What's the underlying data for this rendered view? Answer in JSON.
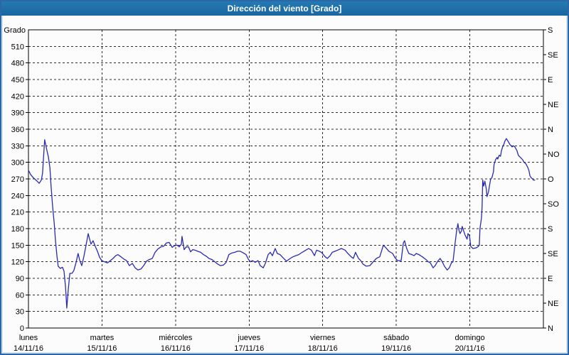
{
  "window": {
    "title": "Dirección del viento [Grado]"
  },
  "chart_data": {
    "type": "line",
    "title": "Dirección del viento [Grado]",
    "y_axis_label": "Grado",
    "x_axis_label": "",
    "ylim": [
      0,
      540
    ],
    "hours_per_day": 24,
    "grid": "dashed",
    "legend": "none",
    "y_left_ticks": [
      0,
      30,
      60,
      90,
      120,
      150,
      180,
      210,
      240,
      270,
      300,
      330,
      360,
      390,
      420,
      450,
      480,
      510
    ],
    "y_right_compass_ticks": [
      {
        "deg": 0,
        "label": "N"
      },
      {
        "deg": 45,
        "label": "NE"
      },
      {
        "deg": 90,
        "label": "E"
      },
      {
        "deg": 135,
        "label": "SE"
      },
      {
        "deg": 180,
        "label": "S"
      },
      {
        "deg": 225,
        "label": "SO"
      },
      {
        "deg": 270,
        "label": "O"
      },
      {
        "deg": 315,
        "label": "NO"
      },
      {
        "deg": 360,
        "label": "N"
      },
      {
        "deg": 405,
        "label": "NE"
      },
      {
        "deg": 450,
        "label": "E"
      },
      {
        "deg": 495,
        "label": "SE"
      },
      {
        "deg": 540,
        "label": "S"
      }
    ],
    "x_days": [
      {
        "name": "lunes",
        "date": "14/11/16"
      },
      {
        "name": "martes",
        "date": "15/11/16"
      },
      {
        "name": "miércoles",
        "date": "16/11/16"
      },
      {
        "name": "jueves",
        "date": "17/11/16"
      },
      {
        "name": "viernes",
        "date": "18/11/16"
      },
      {
        "name": "sábado",
        "date": "19/11/16"
      },
      {
        "name": "domingo",
        "date": "20/11/16"
      }
    ],
    "colors": {
      "line": "#2a2ab4",
      "grid": "#2b2b2b",
      "frame": "#000000",
      "titlebar_bg": "#1d6fa5",
      "titlebar_text": "#ffffff",
      "window_border": "#2a68a8",
      "background": "#fcfcfc"
    },
    "series": [
      {
        "name": "Dirección del viento",
        "unit": "Grado",
        "color": "#2a2ab4",
        "points": [
          [
            0,
            286
          ],
          [
            0.7,
            278
          ],
          [
            1.6,
            272
          ],
          [
            2.8,
            266
          ],
          [
            3.5,
            262
          ],
          [
            4.2,
            268
          ],
          [
            4.6,
            280
          ],
          [
            5,
            315
          ],
          [
            5.3,
            341
          ],
          [
            6,
            322
          ],
          [
            6.5,
            310
          ],
          [
            7,
            290
          ],
          [
            7.4,
            255
          ],
          [
            7.9,
            220
          ],
          [
            8.4,
            190
          ],
          [
            8.8,
            160
          ],
          [
            9.3,
            130
          ],
          [
            9.7,
            112
          ],
          [
            10.4,
            108
          ],
          [
            11.1,
            110
          ],
          [
            11.6,
            103
          ],
          [
            12.1,
            75
          ],
          [
            12.5,
            36
          ],
          [
            13,
            70
          ],
          [
            13.5,
            99
          ],
          [
            14.2,
            99
          ],
          [
            14.8,
            104
          ],
          [
            15.5,
            118
          ],
          [
            16.2,
            135
          ],
          [
            16.7,
            123
          ],
          [
            17.4,
            113
          ],
          [
            18.1,
            130
          ],
          [
            18.8,
            150
          ],
          [
            19.5,
            171
          ],
          [
            20,
            160
          ],
          [
            20.4,
            152
          ],
          [
            21.1,
            158
          ],
          [
            21.8,
            148
          ],
          [
            22.5,
            139
          ],
          [
            23.2,
            128
          ],
          [
            23.9,
            122
          ],
          [
            24.8,
            120
          ],
          [
            25.8,
            118
          ],
          [
            26.7,
            122
          ],
          [
            27.6,
            126
          ],
          [
            28.5,
            131
          ],
          [
            29.2,
            133
          ],
          [
            30.2,
            129
          ],
          [
            31.1,
            125
          ],
          [
            32,
            122
          ],
          [
            32.9,
            113
          ],
          [
            33.9,
            117
          ],
          [
            34.8,
            109
          ],
          [
            35.7,
            105
          ],
          [
            36.7,
            107
          ],
          [
            37.6,
            113
          ],
          [
            38.5,
            121
          ],
          [
            39.4,
            124
          ],
          [
            40.4,
            126
          ],
          [
            41.3,
            137
          ],
          [
            42.2,
            143
          ],
          [
            43.2,
            147
          ],
          [
            44.1,
            148
          ],
          [
            45,
            154
          ],
          [
            45.9,
            155
          ],
          [
            46.9,
            146
          ],
          [
            47.6,
            149
          ],
          [
            48.5,
            150
          ],
          [
            49.2,
            147
          ],
          [
            49.9,
            152
          ],
          [
            50.1,
            166
          ],
          [
            50.8,
            142
          ],
          [
            51.5,
            147
          ],
          [
            52.2,
            147
          ],
          [
            52.9,
            138
          ],
          [
            53.6,
            142
          ],
          [
            54.3,
            141
          ],
          [
            55.2,
            139
          ],
          [
            56.2,
            137
          ],
          [
            57.1,
            133
          ],
          [
            58,
            130
          ],
          [
            58.9,
            126
          ],
          [
            59.9,
            124
          ],
          [
            60.8,
            120
          ],
          [
            61.7,
            116
          ],
          [
            62.6,
            113
          ],
          [
            63.6,
            114
          ],
          [
            64.5,
            119
          ],
          [
            65.4,
            133
          ],
          [
            66.4,
            136
          ],
          [
            67.3,
            137
          ],
          [
            68.2,
            139
          ],
          [
            69.1,
            139
          ],
          [
            70.1,
            136
          ],
          [
            71,
            133
          ],
          [
            71.7,
            125
          ],
          [
            72.4,
            120
          ],
          [
            73.1,
            122
          ],
          [
            74,
            119
          ],
          [
            74.9,
            122
          ],
          [
            75.6,
            113
          ],
          [
            76.6,
            109
          ],
          [
            77.3,
            117
          ],
          [
            78.2,
            133
          ],
          [
            78.9,
            137
          ],
          [
            79.6,
            131
          ],
          [
            80.5,
            144
          ],
          [
            81.2,
            135
          ],
          [
            82.1,
            133
          ],
          [
            83.1,
            127
          ],
          [
            84.2,
            121
          ],
          [
            85.4,
            126
          ],
          [
            86.3,
            129
          ],
          [
            87.2,
            131
          ],
          [
            88.2,
            133
          ],
          [
            89.3,
            137
          ],
          [
            90.5,
            141
          ],
          [
            91.4,
            144
          ],
          [
            92.3,
            141
          ],
          [
            93.3,
            131
          ],
          [
            94,
            141
          ],
          [
            94.9,
            139
          ],
          [
            95.6,
            137
          ],
          [
            96.8,
            129
          ],
          [
            97.5,
            126
          ],
          [
            98.4,
            131
          ],
          [
            99.1,
            137
          ],
          [
            100,
            139
          ],
          [
            100.9,
            141
          ],
          [
            102.1,
            144
          ],
          [
            103.3,
            141
          ],
          [
            104.2,
            135
          ],
          [
            105.3,
            129
          ],
          [
            106,
            126
          ],
          [
            106.7,
            137
          ],
          [
            107.7,
            126
          ],
          [
            108.4,
            122
          ],
          [
            109.1,
            116
          ],
          [
            110.2,
            112
          ],
          [
            111.4,
            113
          ],
          [
            112.5,
            120
          ],
          [
            113.5,
            126
          ],
          [
            114.6,
            129
          ],
          [
            115.8,
            150
          ],
          [
            116.5,
            146
          ],
          [
            117.6,
            139
          ],
          [
            118.8,
            135
          ],
          [
            119.5,
            128
          ],
          [
            120.4,
            122
          ],
          [
            121.6,
            122
          ],
          [
            122.3,
            154
          ],
          [
            122.7,
            158
          ],
          [
            123.4,
            144
          ],
          [
            124.1,
            135
          ],
          [
            125.1,
            133
          ],
          [
            125.8,
            131
          ],
          [
            126.5,
            135
          ],
          [
            127.4,
            133
          ],
          [
            128.5,
            129
          ],
          [
            129.7,
            124
          ],
          [
            130.4,
            120
          ],
          [
            131.1,
            118
          ],
          [
            132,
            109
          ],
          [
            132.7,
            113
          ],
          [
            133.4,
            120
          ],
          [
            134.3,
            126
          ],
          [
            135,
            120
          ],
          [
            135.7,
            112
          ],
          [
            136.6,
            105
          ],
          [
            137.3,
            109
          ],
          [
            138,
            118
          ],
          [
            138.5,
            120
          ],
          [
            139.2,
            154
          ],
          [
            139.7,
            176
          ],
          [
            140.1,
            189
          ],
          [
            140.4,
            178
          ],
          [
            140.8,
            171
          ],
          [
            141.3,
            176
          ],
          [
            141.5,
            184
          ],
          [
            142.4,
            169
          ],
          [
            143.1,
            161
          ],
          [
            143.4,
            171
          ],
          [
            143.9,
            167
          ],
          [
            144.3,
            148
          ],
          [
            145,
            144
          ],
          [
            146,
            145
          ],
          [
            146.6,
            147
          ],
          [
            147.1,
            150
          ],
          [
            147.3,
            180
          ],
          [
            147.8,
            199
          ],
          [
            148,
            219
          ],
          [
            148.2,
            268
          ],
          [
            148.5,
            257
          ],
          [
            148.9,
            266
          ],
          [
            149.4,
            251
          ],
          [
            149.6,
            238
          ],
          [
            150.1,
            247
          ],
          [
            150.5,
            261
          ],
          [
            150.8,
            270
          ],
          [
            151.2,
            272
          ],
          [
            151.7,
            283
          ],
          [
            151.9,
            296
          ],
          [
            152.4,
            305
          ],
          [
            152.9,
            309
          ],
          [
            153.1,
            306
          ],
          [
            153.6,
            313
          ],
          [
            154,
            311
          ],
          [
            154.3,
            321
          ],
          [
            154.7,
            328
          ],
          [
            155.2,
            334
          ],
          [
            155.4,
            338
          ],
          [
            155.9,
            343
          ],
          [
            156.6,
            337
          ],
          [
            157.1,
            332
          ],
          [
            157.5,
            330
          ],
          [
            157.8,
            328
          ],
          [
            158.2,
            330
          ],
          [
            158.7,
            328
          ],
          [
            158.9,
            326
          ],
          [
            159.4,
            321
          ],
          [
            159.8,
            313
          ],
          [
            160.1,
            311
          ],
          [
            160.5,
            309
          ],
          [
            161.2,
            305
          ],
          [
            161.7,
            300
          ],
          [
            162.2,
            298
          ],
          [
            162.4,
            296
          ],
          [
            162.9,
            291
          ],
          [
            163.3,
            285
          ],
          [
            163.6,
            276
          ],
          [
            164,
            272
          ],
          [
            164.5,
            270
          ],
          [
            164.7,
            268
          ],
          [
            165.2,
            268
          ]
        ]
      }
    ]
  }
}
